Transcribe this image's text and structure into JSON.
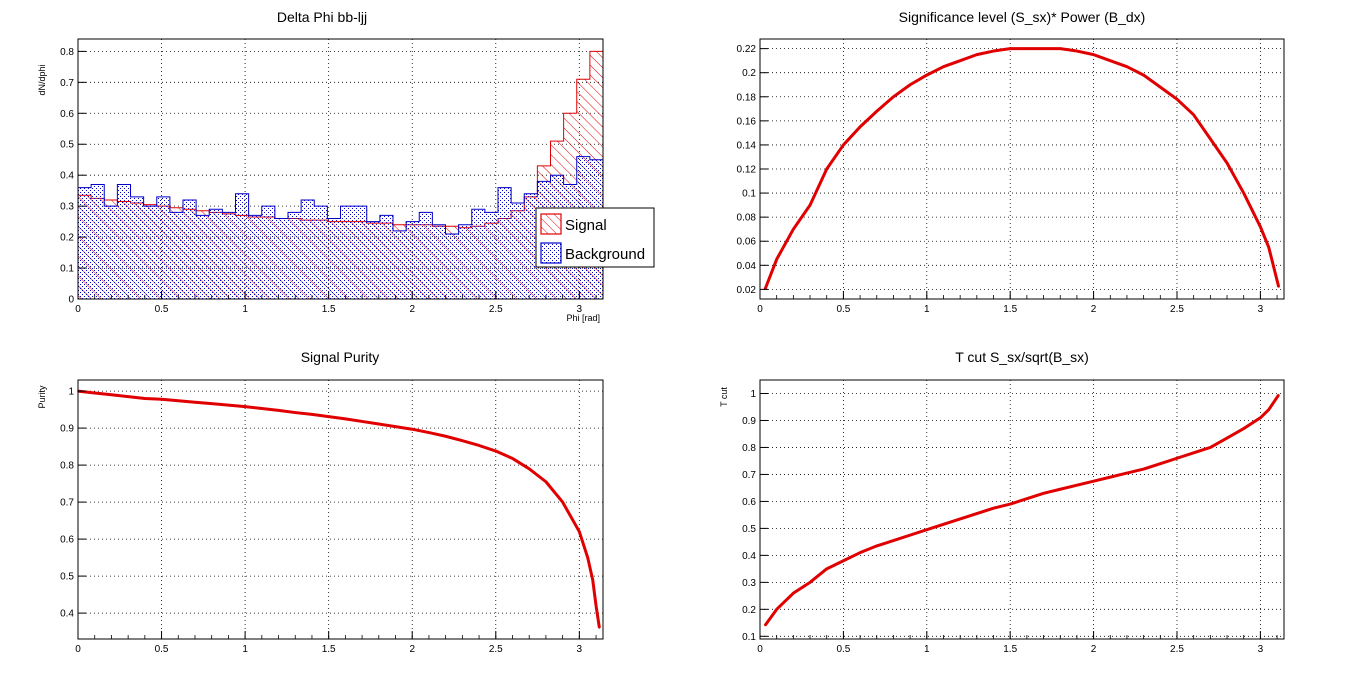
{
  "colors": {
    "signal": "#e00000",
    "background": "#0000c8",
    "curve": "#e00000",
    "grid": "#000000"
  },
  "chart_data": [
    {
      "type": "bar",
      "title": "Delta Phi bb-ljj",
      "xlabel": "Phi [rad]",
      "ylabel": "dN/dphi",
      "xlim": [
        0,
        3.1416
      ],
      "ylim": [
        0,
        0.84
      ],
      "xticks": [
        "0",
        "0.5",
        "1",
        "1.5",
        "2",
        "2.5",
        "3"
      ],
      "yticks": [
        "0",
        "0.1",
        "0.2",
        "0.3",
        "0.4",
        "0.5",
        "0.6",
        "0.7",
        "0.8"
      ],
      "grid": true,
      "legend": "right, middle",
      "bins": 40,
      "series": [
        {
          "name": "Signal",
          "fill": "hatched",
          "values": [
            0.335,
            0.325,
            0.32,
            0.315,
            0.31,
            0.305,
            0.3,
            0.295,
            0.29,
            0.285,
            0.28,
            0.275,
            0.27,
            0.265,
            0.265,
            0.26,
            0.26,
            0.255,
            0.255,
            0.25,
            0.25,
            0.25,
            0.245,
            0.245,
            0.24,
            0.24,
            0.24,
            0.235,
            0.235,
            0.23,
            0.235,
            0.245,
            0.26,
            0.285,
            0.33,
            0.43,
            0.51,
            0.6,
            0.71,
            0.8
          ]
        },
        {
          "name": "Background",
          "fill": "dotted",
          "values": [
            0.36,
            0.37,
            0.3,
            0.37,
            0.33,
            0.3,
            0.33,
            0.28,
            0.32,
            0.27,
            0.29,
            0.28,
            0.34,
            0.27,
            0.3,
            0.26,
            0.28,
            0.32,
            0.3,
            0.26,
            0.3,
            0.3,
            0.25,
            0.27,
            0.22,
            0.25,
            0.28,
            0.24,
            0.21,
            0.24,
            0.29,
            0.28,
            0.36,
            0.31,
            0.34,
            0.38,
            0.4,
            0.37,
            0.46,
            0.45
          ]
        }
      ]
    },
    {
      "type": "line",
      "title": "Significance level (S_sx)* Power (B_dx)",
      "xlim": [
        0,
        3.1416
      ],
      "ylim": [
        0.012,
        0.228
      ],
      "xticks": [
        "0",
        "0.5",
        "1",
        "1.5",
        "2",
        "2.5",
        "3"
      ],
      "yticks": [
        "0.02",
        "0.04",
        "0.06",
        "0.08",
        "0.1",
        "0.12",
        "0.14",
        "0.16",
        "0.18",
        "0.2",
        "0.22"
      ],
      "grid": true,
      "x": [
        0.03,
        0.1,
        0.2,
        0.3,
        0.4,
        0.5,
        0.6,
        0.7,
        0.8,
        0.9,
        1.0,
        1.1,
        1.2,
        1.3,
        1.4,
        1.5,
        1.6,
        1.7,
        1.8,
        1.9,
        2.0,
        2.1,
        2.2,
        2.3,
        2.4,
        2.5,
        2.6,
        2.7,
        2.8,
        2.9,
        3.0,
        3.05,
        3.11
      ],
      "y": [
        0.02,
        0.045,
        0.07,
        0.09,
        0.12,
        0.14,
        0.155,
        0.168,
        0.18,
        0.19,
        0.198,
        0.205,
        0.21,
        0.215,
        0.218,
        0.22,
        0.22,
        0.22,
        0.22,
        0.218,
        0.215,
        0.21,
        0.205,
        0.198,
        0.188,
        0.178,
        0.165,
        0.145,
        0.125,
        0.1,
        0.072,
        0.055,
        0.022
      ]
    },
    {
      "type": "line",
      "title": "Signal Purity",
      "ylabel": "Purity",
      "xlim": [
        0,
        3.1416
      ],
      "ylim": [
        0.33,
        1.03
      ],
      "xticks": [
        "0",
        "0.5",
        "1",
        "1.5",
        "2",
        "2.5",
        "3"
      ],
      "yticks": [
        "0.4",
        "0.5",
        "0.6",
        "0.7",
        "0.8",
        "0.9",
        "1"
      ],
      "grid": true,
      "x": [
        0.0,
        0.1,
        0.2,
        0.3,
        0.4,
        0.5,
        0.6,
        0.7,
        0.8,
        0.9,
        1.0,
        1.1,
        1.2,
        1.3,
        1.4,
        1.5,
        1.6,
        1.7,
        1.8,
        1.9,
        2.0,
        2.1,
        2.2,
        2.3,
        2.4,
        2.5,
        2.6,
        2.7,
        2.8,
        2.9,
        3.0,
        3.05,
        3.08,
        3.1,
        3.12
      ],
      "y": [
        1.0,
        0.995,
        0.99,
        0.985,
        0.98,
        0.978,
        0.974,
        0.97,
        0.966,
        0.962,
        0.958,
        0.953,
        0.948,
        0.942,
        0.937,
        0.931,
        0.925,
        0.918,
        0.911,
        0.904,
        0.897,
        0.888,
        0.878,
        0.866,
        0.853,
        0.838,
        0.818,
        0.79,
        0.755,
        0.7,
        0.62,
        0.55,
        0.49,
        0.42,
        0.36
      ]
    },
    {
      "type": "line",
      "title": "T cut S_sx/sqrt(B_sx)",
      "ylabel": "T cut",
      "xlim": [
        0,
        3.1416
      ],
      "ylim": [
        0.09,
        1.05
      ],
      "xticks": [
        "0",
        "0.5",
        "1",
        "1.5",
        "2",
        "2.5",
        "3"
      ],
      "yticks": [
        "0.1",
        "0.2",
        "0.3",
        "0.4",
        "0.5",
        "0.6",
        "0.7",
        "0.8",
        "0.9",
        "1"
      ],
      "grid": true,
      "x": [
        0.03,
        0.1,
        0.2,
        0.3,
        0.4,
        0.5,
        0.6,
        0.7,
        0.8,
        0.9,
        1.0,
        1.1,
        1.2,
        1.3,
        1.4,
        1.5,
        1.6,
        1.7,
        1.8,
        1.9,
        2.0,
        2.1,
        2.2,
        2.3,
        2.4,
        2.5,
        2.6,
        2.7,
        2.8,
        2.9,
        3.0,
        3.05,
        3.11
      ],
      "y": [
        0.14,
        0.2,
        0.26,
        0.3,
        0.35,
        0.38,
        0.41,
        0.435,
        0.455,
        0.475,
        0.495,
        0.515,
        0.535,
        0.555,
        0.575,
        0.59,
        0.61,
        0.63,
        0.645,
        0.66,
        0.675,
        0.69,
        0.705,
        0.72,
        0.74,
        0.76,
        0.78,
        0.8,
        0.835,
        0.87,
        0.91,
        0.94,
        0.995
      ]
    }
  ]
}
